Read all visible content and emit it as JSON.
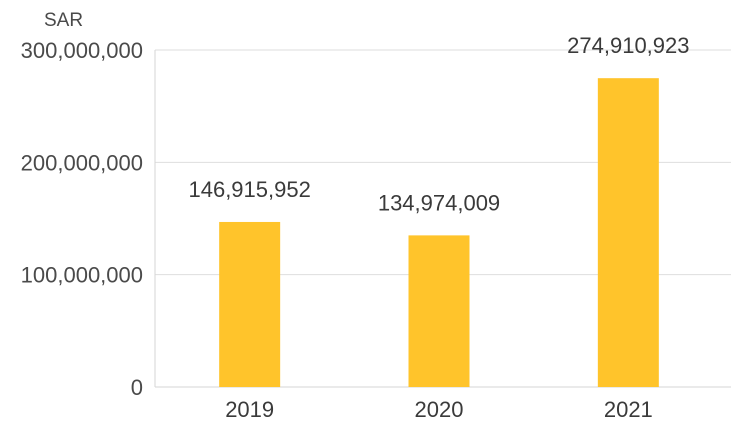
{
  "chart_data": {
    "type": "bar",
    "unit_label": "SAR",
    "categories": [
      "2019",
      "2020",
      "2021"
    ],
    "values": [
      146915952,
      134974009,
      274910923
    ],
    "value_labels": [
      "146,915,952",
      "134,974,009",
      "274,910,923"
    ],
    "ylim": [
      0,
      300000000
    ],
    "yticks": [
      0,
      100000000,
      200000000,
      300000000
    ],
    "ytick_labels": [
      "0",
      "100,000,000",
      "200,000,000",
      "300,000,000"
    ],
    "grid": true,
    "bar_color": "#FFC42B",
    "grid_color": "#dedede"
  }
}
